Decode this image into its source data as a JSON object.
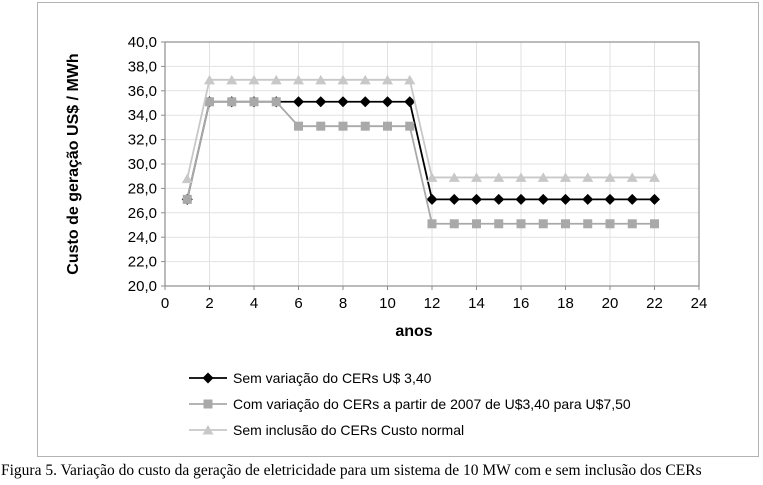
{
  "figure": {
    "caption": "Figura 5. Variação do custo da geração de eletricidade para um sistema de 10 MW com e sem inclusão dos CERs"
  },
  "chart_data": {
    "type": "line",
    "title": "",
    "xlabel": "anos",
    "ylabel": "Custo de geração US$ / MWh",
    "xlim": [
      0,
      24
    ],
    "ylim": [
      20,
      40
    ],
    "xticks": [
      0,
      2,
      4,
      6,
      8,
      10,
      12,
      14,
      16,
      18,
      20,
      22,
      24
    ],
    "xtick_labels": [
      "0",
      "2",
      "4",
      "6",
      "8",
      "10",
      "12",
      "14",
      "16",
      "18",
      "20",
      "22",
      "24"
    ],
    "yticks": [
      20,
      22,
      24,
      26,
      28,
      30,
      32,
      34,
      36,
      38,
      40
    ],
    "ytick_labels": [
      "20,0",
      "22,0",
      "24,0",
      "26,0",
      "28,0",
      "30,0",
      "32,0",
      "34,0",
      "36,0",
      "38,0",
      "40,0"
    ],
    "grid": true,
    "legend_position": "bottom-center",
    "x": [
      1,
      2,
      3,
      4,
      5,
      6,
      7,
      8,
      9,
      10,
      11,
      12,
      13,
      14,
      15,
      16,
      17,
      18,
      19,
      20,
      21,
      22
    ],
    "series": [
      {
        "name": "Sem variação do CERs U$ 3,40",
        "marker": "diamond",
        "color": "#000000",
        "values": [
          27.1,
          35.1,
          35.1,
          35.1,
          35.1,
          35.1,
          35.1,
          35.1,
          35.1,
          35.1,
          35.1,
          27.1,
          27.1,
          27.1,
          27.1,
          27.1,
          27.1,
          27.1,
          27.1,
          27.1,
          27.1,
          27.1
        ]
      },
      {
        "name": "Com variação do CERs a partir de 2007 de U$3,40 para U$7,50",
        "marker": "square",
        "color": "#a9a9a9",
        "values": [
          27.1,
          35.1,
          35.1,
          35.1,
          35.1,
          33.1,
          33.1,
          33.1,
          33.1,
          33.1,
          33.1,
          25.1,
          25.1,
          25.1,
          25.1,
          25.1,
          25.1,
          25.1,
          25.1,
          25.1,
          25.1,
          25.1
        ]
      },
      {
        "name": "Sem inclusão do CERs Custo normal",
        "marker": "triangle",
        "color": "#c8c8c8",
        "values": [
          28.8,
          36.9,
          36.9,
          36.9,
          36.9,
          36.9,
          36.9,
          36.9,
          36.9,
          36.9,
          36.9,
          28.9,
          28.9,
          28.9,
          28.9,
          28.9,
          28.9,
          28.9,
          28.9,
          28.9,
          28.9,
          28.9
        ]
      }
    ],
    "colors": {
      "grid": "#e2e2e2",
      "axis": "#8e8e8e",
      "frame": "#b3b3b3"
    }
  }
}
